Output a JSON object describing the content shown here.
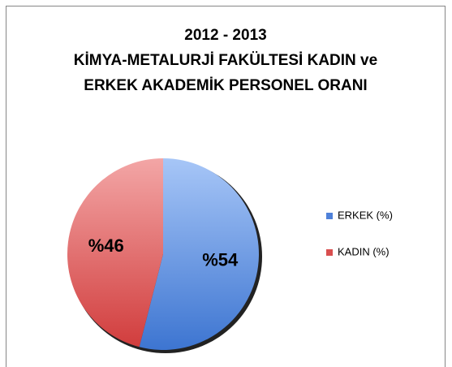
{
  "chart_data": {
    "type": "pie",
    "title": [
      "2012 - 2013",
      "KİMYA-METALURJİ FAKÜLTESİ KADIN ve",
      "ERKEK AKADEMİK PERSONEL ORANI"
    ],
    "categories": [
      "ERKEK (%)",
      "KADIN (%)"
    ],
    "values": [
      54,
      46
    ],
    "value_labels": [
      "%54",
      "%46"
    ],
    "colors": [
      "#4f81d9",
      "#d94f4f"
    ],
    "legend": "right"
  }
}
